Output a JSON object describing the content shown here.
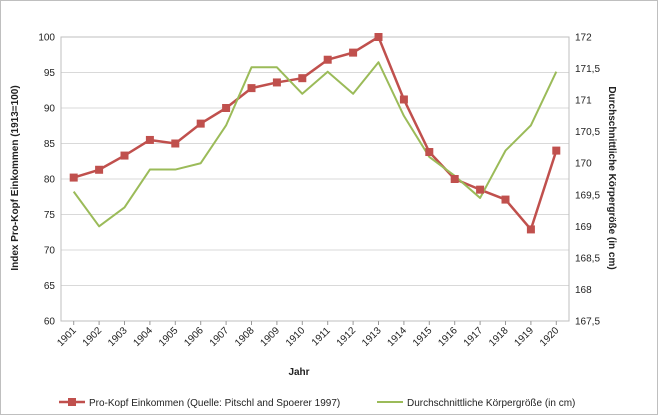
{
  "chart_data": {
    "type": "line",
    "x": [
      "1901",
      "1902",
      "1903",
      "1904",
      "1905",
      "1906",
      "1907",
      "1908",
      "1909",
      "1910",
      "1911",
      "1912",
      "1913",
      "1914",
      "1915",
      "1916",
      "1917",
      "1918",
      "1919",
      "1920"
    ],
    "xlabel": "Jahr",
    "ylabel_left": "Index Pro-Kopf Einkommen (1913=100)",
    "ylabel_right": "Durchschnittliche Körpergröße (in cm)",
    "ylim_left": [
      60,
      100
    ],
    "ylim_right": [
      167.5,
      172
    ],
    "yticks_left": [
      "60",
      "65",
      "70",
      "75",
      "80",
      "85",
      "90",
      "95",
      "100"
    ],
    "yticks_right": [
      "167,5",
      "168",
      "168,5",
      "169",
      "169,5",
      "170",
      "170,5",
      "171",
      "171,5",
      "172"
    ],
    "grid": true,
    "legend_position": "bottom",
    "series": [
      {
        "name": "Pro-Kopf Einkommen (Quelle: Pitschl and Spoerer 1997)",
        "axis": "left",
        "color": "#c0504d",
        "marker": "square",
        "values": [
          80.2,
          81.3,
          83.3,
          85.5,
          85.0,
          87.8,
          90.0,
          92.8,
          93.6,
          94.2,
          96.8,
          97.8,
          100.0,
          91.2,
          83.8,
          80.0,
          78.5,
          77.1,
          72.9,
          84.0
        ]
      },
      {
        "name": "Durchschnittliche Körpergröße (in cm)",
        "axis": "right",
        "color": "#9bbb59",
        "marker": "none",
        "values": [
          169.55,
          169.0,
          169.3,
          169.9,
          169.9,
          170.0,
          170.6,
          171.52,
          171.52,
          171.1,
          171.45,
          171.1,
          171.6,
          170.75,
          170.1,
          169.8,
          169.45,
          170.2,
          170.6,
          171.45
        ]
      }
    ]
  }
}
